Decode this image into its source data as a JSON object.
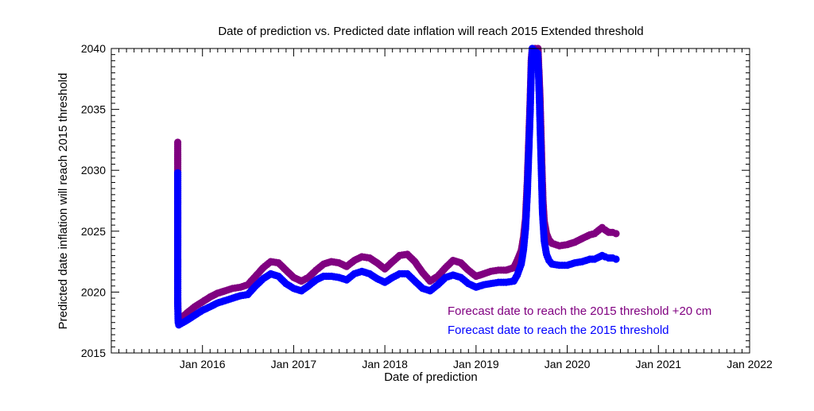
{
  "chart_data": {
    "type": "scatter",
    "title": "Date of prediction vs. Predicted date inflation will reach 2015 Extended threshold",
    "xlabel": "Date of prediction",
    "ylabel": "Predicted date inflation will reach 2015 threshold",
    "xlim": [
      "2015-01-01",
      "2022-01-01"
    ],
    "ylim": [
      2015,
      2040
    ],
    "x_ticks": [
      {
        "date": "2016-01-01",
        "label": "Jan 2016"
      },
      {
        "date": "2017-01-01",
        "label": "Jan 2017"
      },
      {
        "date": "2018-01-01",
        "label": "Jan 2018"
      },
      {
        "date": "2019-01-01",
        "label": "Jan 2019"
      },
      {
        "date": "2020-01-01",
        "label": "Jan 2020"
      },
      {
        "date": "2021-01-01",
        "label": "Jan 2021"
      },
      {
        "date": "2022-01-01",
        "label": "Jan 2022"
      }
    ],
    "y_ticks": [
      2015,
      2020,
      2025,
      2030,
      2035,
      2040
    ],
    "grid": false,
    "legend_position": "bottom-right",
    "series": [
      {
        "name": "Forecast date to reach the 2015 threshold +20 cm",
        "color": "#800080",
        "points": [
          [
            "2015-09-24",
            2032.3
          ],
          [
            "2015-09-24",
            2023.1
          ],
          [
            "2015-09-24",
            2022.1
          ],
          [
            "2015-09-24",
            2020.5
          ],
          [
            "2015-09-24",
            2019.2
          ],
          [
            "2015-09-25",
            2018.5
          ],
          [
            "2015-09-26",
            2017.9
          ],
          [
            "2015-09-28",
            2017.7
          ],
          [
            "2015-10-15",
            2018.0
          ],
          [
            "2015-11-01",
            2018.3
          ],
          [
            "2015-12-01",
            2018.8
          ],
          [
            "2016-01-01",
            2019.2
          ],
          [
            "2016-02-01",
            2019.6
          ],
          [
            "2016-03-01",
            2019.9
          ],
          [
            "2016-04-01",
            2020.1
          ],
          [
            "2016-05-01",
            2020.3
          ],
          [
            "2016-06-01",
            2020.4
          ],
          [
            "2016-07-01",
            2020.6
          ],
          [
            "2016-08-01",
            2021.3
          ],
          [
            "2016-09-01",
            2022.0
          ],
          [
            "2016-10-01",
            2022.5
          ],
          [
            "2016-11-01",
            2022.4
          ],
          [
            "2016-12-01",
            2021.8
          ],
          [
            "2017-01-01",
            2021.2
          ],
          [
            "2017-02-01",
            2020.9
          ],
          [
            "2017-03-01",
            2021.2
          ],
          [
            "2017-04-01",
            2021.8
          ],
          [
            "2017-05-01",
            2022.3
          ],
          [
            "2017-06-01",
            2022.5
          ],
          [
            "2017-07-01",
            2022.4
          ],
          [
            "2017-08-01",
            2022.1
          ],
          [
            "2017-09-01",
            2022.6
          ],
          [
            "2017-10-01",
            2022.9
          ],
          [
            "2017-11-01",
            2022.8
          ],
          [
            "2017-12-01",
            2022.4
          ],
          [
            "2018-01-01",
            2021.9
          ],
          [
            "2018-02-01",
            2022.5
          ],
          [
            "2018-03-01",
            2023.0
          ],
          [
            "2018-04-01",
            2023.1
          ],
          [
            "2018-05-01",
            2022.5
          ],
          [
            "2018-06-01",
            2021.6
          ],
          [
            "2018-07-01",
            2020.9
          ],
          [
            "2018-08-01",
            2021.3
          ],
          [
            "2018-09-01",
            2022.0
          ],
          [
            "2018-10-01",
            2022.6
          ],
          [
            "2018-11-01",
            2022.4
          ],
          [
            "2018-12-01",
            2021.8
          ],
          [
            "2019-01-01",
            2021.3
          ],
          [
            "2019-02-01",
            2021.5
          ],
          [
            "2019-03-01",
            2021.7
          ],
          [
            "2019-04-01",
            2021.8
          ],
          [
            "2019-05-01",
            2021.8
          ],
          [
            "2019-06-01",
            2022.0
          ],
          [
            "2019-06-15",
            2022.6
          ],
          [
            "2019-07-01",
            2023.4
          ],
          [
            "2019-07-10",
            2024.5
          ],
          [
            "2019-07-18",
            2026.0
          ],
          [
            "2019-07-25",
            2029.0
          ],
          [
            "2019-08-01",
            2033.0
          ],
          [
            "2019-08-06",
            2036.0
          ],
          [
            "2019-08-10",
            2039.0
          ],
          [
            "2019-08-14",
            2040.0
          ],
          [
            "2019-09-06",
            2040.0
          ],
          [
            "2019-09-10",
            2038.0
          ],
          [
            "2019-09-14",
            2036.0
          ],
          [
            "2019-09-18",
            2033.0
          ],
          [
            "2019-09-22",
            2030.0
          ],
          [
            "2019-09-26",
            2027.5
          ],
          [
            "2019-10-01",
            2025.8
          ],
          [
            "2019-10-10",
            2024.8
          ],
          [
            "2019-10-20",
            2024.3
          ],
          [
            "2019-11-01",
            2024.0
          ],
          [
            "2019-12-01",
            2023.8
          ],
          [
            "2020-01-01",
            2023.9
          ],
          [
            "2020-02-01",
            2024.1
          ],
          [
            "2020-03-01",
            2024.4
          ],
          [
            "2020-04-01",
            2024.7
          ],
          [
            "2020-04-20",
            2024.8
          ],
          [
            "2020-05-20",
            2025.3
          ],
          [
            "2020-06-01",
            2025.1
          ],
          [
            "2020-06-15",
            2024.9
          ],
          [
            "2020-07-01",
            2024.9
          ],
          [
            "2020-07-15",
            2024.8
          ]
        ]
      },
      {
        "name": "Forecast date to reach the 2015 threshold",
        "color": "#0000ff",
        "points": [
          [
            "2015-09-24",
            2029.8
          ],
          [
            "2015-09-24",
            2022.0
          ],
          [
            "2015-09-24",
            2021.0
          ],
          [
            "2015-09-24",
            2019.8
          ],
          [
            "2015-09-24",
            2018.8
          ],
          [
            "2015-09-25",
            2018.0
          ],
          [
            "2015-09-26",
            2017.5
          ],
          [
            "2015-09-28",
            2017.3
          ],
          [
            "2015-10-15",
            2017.5
          ],
          [
            "2015-11-01",
            2017.7
          ],
          [
            "2015-12-01",
            2018.1
          ],
          [
            "2016-01-01",
            2018.5
          ],
          [
            "2016-02-01",
            2018.8
          ],
          [
            "2016-03-01",
            2019.1
          ],
          [
            "2016-04-01",
            2019.3
          ],
          [
            "2016-05-01",
            2019.5
          ],
          [
            "2016-06-01",
            2019.7
          ],
          [
            "2016-07-01",
            2019.8
          ],
          [
            "2016-08-01",
            2020.5
          ],
          [
            "2016-09-01",
            2021.1
          ],
          [
            "2016-10-01",
            2021.5
          ],
          [
            "2016-11-01",
            2021.3
          ],
          [
            "2016-12-01",
            2020.7
          ],
          [
            "2017-01-01",
            2020.3
          ],
          [
            "2017-02-01",
            2020.1
          ],
          [
            "2017-03-01",
            2020.5
          ],
          [
            "2017-04-01",
            2021.0
          ],
          [
            "2017-05-01",
            2021.3
          ],
          [
            "2017-06-01",
            2021.3
          ],
          [
            "2017-07-01",
            2021.2
          ],
          [
            "2017-08-01",
            2021.0
          ],
          [
            "2017-09-01",
            2021.5
          ],
          [
            "2017-10-01",
            2021.7
          ],
          [
            "2017-11-01",
            2021.5
          ],
          [
            "2017-12-01",
            2021.1
          ],
          [
            "2018-01-01",
            2020.8
          ],
          [
            "2018-02-01",
            2021.2
          ],
          [
            "2018-03-01",
            2021.5
          ],
          [
            "2018-04-01",
            2021.5
          ],
          [
            "2018-05-01",
            2020.9
          ],
          [
            "2018-06-01",
            2020.3
          ],
          [
            "2018-07-01",
            2020.1
          ],
          [
            "2018-08-01",
            2020.6
          ],
          [
            "2018-09-01",
            2021.2
          ],
          [
            "2018-10-01",
            2021.4
          ],
          [
            "2018-11-01",
            2021.2
          ],
          [
            "2018-12-01",
            2020.7
          ],
          [
            "2019-01-01",
            2020.4
          ],
          [
            "2019-02-01",
            2020.6
          ],
          [
            "2019-03-01",
            2020.7
          ],
          [
            "2019-04-01",
            2020.8
          ],
          [
            "2019-05-01",
            2020.8
          ],
          [
            "2019-06-01",
            2020.9
          ],
          [
            "2019-06-15",
            2021.4
          ],
          [
            "2019-07-01",
            2022.3
          ],
          [
            "2019-07-10",
            2023.5
          ],
          [
            "2019-07-18",
            2025.2
          ],
          [
            "2019-07-25",
            2028.0
          ],
          [
            "2019-08-01",
            2032.0
          ],
          [
            "2019-08-06",
            2035.0
          ],
          [
            "2019-08-10",
            2038.0
          ],
          [
            "2019-08-14",
            2040.0
          ],
          [
            "2019-09-04",
            2039.6
          ],
          [
            "2019-09-08",
            2038.0
          ],
          [
            "2019-09-12",
            2035.5
          ],
          [
            "2019-09-16",
            2032.5
          ],
          [
            "2019-09-20",
            2029.5
          ],
          [
            "2019-09-24",
            2026.5
          ],
          [
            "2019-10-01",
            2024.2
          ],
          [
            "2019-10-10",
            2023.1
          ],
          [
            "2019-10-20",
            2022.6
          ],
          [
            "2019-11-01",
            2022.3
          ],
          [
            "2019-12-01",
            2022.2
          ],
          [
            "2020-01-01",
            2022.2
          ],
          [
            "2020-02-01",
            2022.4
          ],
          [
            "2020-03-01",
            2022.5
          ],
          [
            "2020-04-01",
            2022.7
          ],
          [
            "2020-04-20",
            2022.7
          ],
          [
            "2020-05-20",
            2023.0
          ],
          [
            "2020-06-01",
            2022.9
          ],
          [
            "2020-06-15",
            2022.8
          ],
          [
            "2020-07-01",
            2022.8
          ],
          [
            "2020-07-15",
            2022.7
          ]
        ]
      }
    ]
  }
}
